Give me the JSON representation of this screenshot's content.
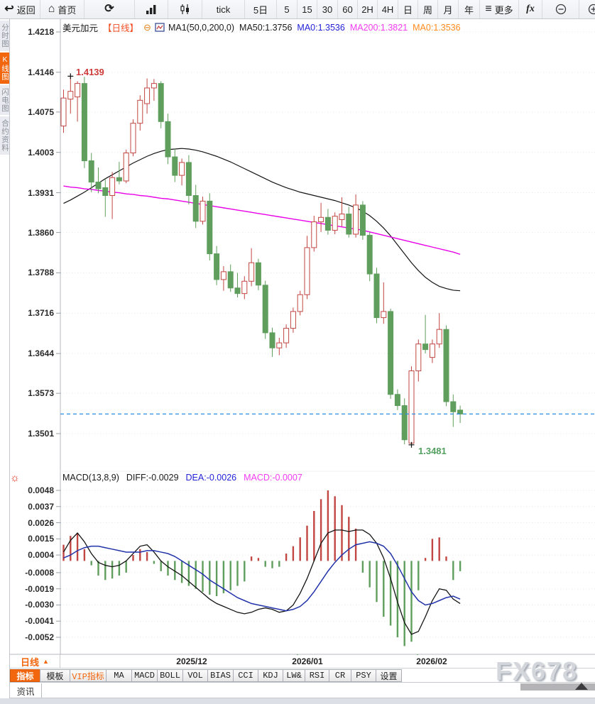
{
  "toolbar": {
    "items": [
      {
        "name": "back-button",
        "label": "返回",
        "icon": "back-arrow-icon"
      },
      {
        "name": "home-button",
        "label": "首页",
        "icon": "home-icon"
      },
      {
        "name": "refresh-button",
        "label": "",
        "icon": "refresh-icon"
      },
      {
        "name": "bar-chart-button",
        "label": "",
        "icon": "bar-chart-icon"
      },
      {
        "name": "candlestick-button",
        "label": "",
        "icon": "candlestick-icon"
      },
      {
        "name": "interval-tick-button",
        "label": "tick",
        "icon": ""
      },
      {
        "name": "interval-5d-button",
        "label": "5日",
        "icon": ""
      },
      {
        "name": "interval-5-button",
        "label": "5",
        "icon": ""
      },
      {
        "name": "interval-15-button",
        "label": "15",
        "icon": ""
      },
      {
        "name": "interval-30-button",
        "label": "30",
        "icon": ""
      },
      {
        "name": "interval-60-button",
        "label": "60",
        "icon": ""
      },
      {
        "name": "interval-2h-button",
        "label": "2H",
        "icon": ""
      },
      {
        "name": "interval-4h-button",
        "label": "4H",
        "icon": ""
      },
      {
        "name": "interval-day-button",
        "label": "日",
        "icon": ""
      },
      {
        "name": "interval-week-button",
        "label": "周",
        "icon": ""
      },
      {
        "name": "interval-month-button",
        "label": "月",
        "icon": ""
      },
      {
        "name": "interval-year-button",
        "label": "年",
        "icon": ""
      },
      {
        "name": "more-button",
        "label": "更多",
        "icon": "menu-icon"
      },
      {
        "name": "formula-button",
        "label": "fx",
        "icon": ""
      },
      {
        "name": "zoom-out-button",
        "label": "",
        "icon": "zoom-out-icon"
      },
      {
        "name": "zoom-in-button",
        "label": "",
        "icon": "zoom-in-icon"
      }
    ]
  },
  "sidebar": {
    "items": [
      {
        "name": "tab-time-chart",
        "label": "分时图",
        "selected": false
      },
      {
        "name": "tab-kline-chart",
        "label": "K线图",
        "selected": true
      },
      {
        "name": "tab-lightning-chart",
        "label": "闪电图",
        "selected": false
      },
      {
        "name": "tab-contract-info",
        "label": "合约资料",
        "selected": false
      }
    ]
  },
  "chart_header": {
    "symbol": "美元加元",
    "period": "【日线】",
    "ma_settings": "MA1(50,0,200,0)",
    "ma50": "MA50:1.3756",
    "ma0_blue": "MA0:1.3536",
    "ma200": "MA200:1.3821",
    "ma0_orange": "MA0:1.3536"
  },
  "main_chart": {
    "high_label": "1.4139",
    "low_label": "1.3481"
  },
  "macd_header": {
    "params": "MACD(13,8,9)",
    "diff": "DIFF:-0.0029",
    "dea": "DEA:-0.0026",
    "macd": "MACD:-0.0007"
  },
  "bottom": {
    "period_label": "日线",
    "dates": [
      "2025/12",
      "2026/01",
      "2026/02"
    ],
    "tabs": [
      {
        "name": "tab-indicator",
        "label": "指标",
        "selected": true,
        "vip": false
      },
      {
        "name": "tab-template",
        "label": "模板",
        "selected": false,
        "vip": false
      },
      {
        "name": "tab-vip-indicator",
        "label": "VIP指标",
        "selected": false,
        "vip": true
      },
      {
        "name": "tab-ma",
        "label": "MA",
        "selected": false,
        "vip": false
      },
      {
        "name": "tab-macd",
        "label": "MACD",
        "selected": false,
        "vip": false
      },
      {
        "name": "tab-boll",
        "label": "BOLL",
        "selected": false,
        "vip": false
      },
      {
        "name": "tab-vol",
        "label": "VOL",
        "selected": false,
        "vip": false
      },
      {
        "name": "tab-bias",
        "label": "BIAS",
        "selected": false,
        "vip": false
      },
      {
        "name": "tab-cci",
        "label": "CCI",
        "selected": false,
        "vip": false
      },
      {
        "name": "tab-kdj",
        "label": "KDJ",
        "selected": false,
        "vip": false
      },
      {
        "name": "tab-lwr",
        "label": "LW&",
        "selected": false,
        "vip": false
      },
      {
        "name": "tab-rsi",
        "label": "RSI",
        "selected": false,
        "vip": false
      },
      {
        "name": "tab-cr",
        "label": "CR",
        "selected": false,
        "vip": false
      },
      {
        "name": "tab-psy",
        "label": "PSY",
        "selected": false,
        "vip": false
      },
      {
        "name": "tab-settings",
        "label": "设置",
        "selected": false,
        "vip": false
      }
    ],
    "news_label": "资讯"
  },
  "watermark": "FX678",
  "colors": {
    "up": "#c24642",
    "down": "#5f9e5c",
    "ma50": "#141414",
    "ma200": "#e800e8",
    "diff_line": "#141414",
    "dea_line": "#2233aa",
    "price_line": "#2e8ce0",
    "accent_orange": "#f2660d",
    "header_period": "#f04e23",
    "text_blue": "#2323d8",
    "text_magenta": "#f23cf2",
    "text_orange": "#ff8a1e",
    "grid": "#e4e6ea"
  },
  "chart_data": [
    {
      "type": "candlestick",
      "title": "美元加元 日线 (USD/CAD Daily)",
      "y_ticks": [
        1.4218,
        1.4146,
        1.4075,
        1.4003,
        1.3931,
        1.386,
        1.3788,
        1.3716,
        1.3644,
        1.3573,
        1.3501
      ],
      "x_labels": [
        "2025/12",
        "2026/01",
        "2026/02"
      ],
      "high_annotation": 1.4139,
      "low_annotation": 1.3481,
      "last_price_line": 1.3536,
      "ma50_last": 1.3756,
      "ma200_last": 1.3821,
      "candles_ohlc": [
        [
          1.405,
          1.4115,
          1.4038,
          1.41
        ],
        [
          1.4098,
          1.4139,
          1.4072,
          1.4112
        ],
        [
          1.4102,
          1.413,
          1.4058,
          1.4126
        ],
        [
          1.4126,
          1.4138,
          1.3975,
          1.3988
        ],
        [
          1.3988,
          1.4002,
          1.3932,
          1.395
        ],
        [
          1.395,
          1.3976,
          1.393,
          1.3938
        ],
        [
          1.394,
          1.3956,
          1.3888,
          1.3926
        ],
        [
          1.3926,
          1.3968,
          1.3884,
          1.3958
        ],
        [
          1.3958,
          1.3986,
          1.3946,
          1.3952
        ],
        [
          1.3952,
          1.4008,
          1.3948,
          1.4002
        ],
        [
          1.4002,
          1.4062,
          1.3996,
          1.4055
        ],
        [
          1.4055,
          1.4105,
          1.4042,
          1.4096
        ],
        [
          1.409,
          1.4135,
          1.4072,
          1.4118
        ],
        [
          1.4118,
          1.4134,
          1.4095,
          1.4126
        ],
        [
          1.4126,
          1.413,
          1.4046,
          1.4058
        ],
        [
          1.4058,
          1.4072,
          1.3982,
          1.3995
        ],
        [
          1.3995,
          1.401,
          1.395,
          1.3962
        ],
        [
          1.3962,
          1.3992,
          1.3944,
          1.3985
        ],
        [
          1.3985,
          1.3998,
          1.391,
          1.3926
        ],
        [
          1.3926,
          1.3945,
          1.3868,
          1.388
        ],
        [
          1.388,
          1.3924,
          1.3874,
          1.3916
        ],
        [
          1.3916,
          1.393,
          1.381,
          1.3822
        ],
        [
          1.3822,
          1.3836,
          1.3766,
          1.3776
        ],
        [
          1.3776,
          1.38,
          1.3756,
          1.379
        ],
        [
          1.379,
          1.3803,
          1.3754,
          1.3761
        ],
        [
          1.3761,
          1.3788,
          1.3744,
          1.3751
        ],
        [
          1.3751,
          1.3782,
          1.3741,
          1.3773
        ],
        [
          1.3773,
          1.3832,
          1.3764,
          1.3806
        ],
        [
          1.3806,
          1.3813,
          1.3757,
          1.3766
        ],
        [
          1.3766,
          1.3774,
          1.367,
          1.3681
        ],
        [
          1.3681,
          1.369,
          1.3638,
          1.3654
        ],
        [
          1.3654,
          1.3672,
          1.3641,
          1.3663
        ],
        [
          1.3663,
          1.3696,
          1.3654,
          1.3689
        ],
        [
          1.3689,
          1.3726,
          1.3681,
          1.3719
        ],
        [
          1.3719,
          1.3756,
          1.3712,
          1.3749
        ],
        [
          1.3749,
          1.3854,
          1.3741,
          1.3833
        ],
        [
          1.3833,
          1.389,
          1.3826,
          1.3879
        ],
        [
          1.3879,
          1.3913,
          1.3861,
          1.3887
        ],
        [
          1.3887,
          1.3902,
          1.3856,
          1.3864
        ],
        [
          1.3864,
          1.3896,
          1.3857,
          1.3889
        ],
        [
          1.3883,
          1.3923,
          1.3871,
          1.3893
        ],
        [
          1.3893,
          1.3906,
          1.3851,
          1.3857
        ],
        [
          1.3857,
          1.3928,
          1.3851,
          1.3909
        ],
        [
          1.3909,
          1.3916,
          1.3847,
          1.3855
        ],
        [
          1.3855,
          1.3861,
          1.3773,
          1.3786
        ],
        [
          1.3786,
          1.3797,
          1.3698,
          1.3708
        ],
        [
          1.3708,
          1.3771,
          1.3697,
          1.3719
        ],
        [
          1.3719,
          1.3724,
          1.3563,
          1.3571
        ],
        [
          1.3571,
          1.358,
          1.3543,
          1.3551
        ],
        [
          1.3551,
          1.3564,
          1.3482,
          1.349
        ],
        [
          1.3484,
          1.3621,
          1.3481,
          1.3613
        ],
        [
          1.3613,
          1.3669,
          1.3594,
          1.3661
        ],
        [
          1.3661,
          1.3713,
          1.3644,
          1.3651
        ],
        [
          1.3637,
          1.3669,
          1.3627,
          1.3661
        ],
        [
          1.3661,
          1.3716,
          1.3654,
          1.3687
        ],
        [
          1.3687,
          1.3694,
          1.355,
          1.3558
        ],
        [
          1.3558,
          1.3571,
          1.3513,
          1.354
        ],
        [
          1.3543,
          1.3551,
          1.352,
          1.3536
        ]
      ],
      "ma50": [
        1.3912,
        1.3918,
        1.3925,
        1.3932,
        1.394,
        1.3948,
        1.3956,
        1.3963,
        1.397,
        1.3977,
        1.3984,
        1.399,
        1.3996,
        1.4001,
        1.4005,
        1.4008,
        1.4009,
        1.401,
        1.4009,
        1.4007,
        1.4004,
        1.4,
        1.3996,
        1.3991,
        1.3986,
        1.398,
        1.3974,
        1.3968,
        1.3962,
        1.3956,
        1.395,
        1.3945,
        1.394,
        1.3936,
        1.3932,
        1.3929,
        1.3926,
        1.3923,
        1.392,
        1.3917,
        1.3913,
        1.3909,
        1.3904,
        1.3898,
        1.389,
        1.388,
        1.3868,
        1.3854,
        1.3838,
        1.3822,
        1.3806,
        1.3792,
        1.378,
        1.3771,
        1.3764,
        1.376,
        1.3757,
        1.3756
      ],
      "ma200": [
        1.3943,
        1.3941,
        1.394,
        1.3938,
        1.3937,
        1.3935,
        1.3934,
        1.3932,
        1.3931,
        1.3929,
        1.3928,
        1.3926,
        1.3925,
        1.3923,
        1.3921,
        1.392,
        1.3918,
        1.3916,
        1.3914,
        1.3912,
        1.391,
        1.3908,
        1.3906,
        1.3904,
        1.3902,
        1.39,
        1.3898,
        1.3896,
        1.3894,
        1.3892,
        1.389,
        1.3888,
        1.3886,
        1.3884,
        1.3882,
        1.388,
        1.3878,
        1.3876,
        1.3874,
        1.3872,
        1.387,
        1.3868,
        1.3866,
        1.3864,
        1.3861,
        1.3858,
        1.3855,
        1.3852,
        1.3849,
        1.3846,
        1.3843,
        1.384,
        1.3837,
        1.3834,
        1.3831,
        1.3828,
        1.3825,
        1.3821
      ]
    },
    {
      "type": "macd",
      "params": "MACD(13,8,9)",
      "y_ticks": [
        0.0048,
        0.0037,
        0.0026,
        0.0015,
        0.0004,
        -0.0008,
        -0.0019,
        -0.003,
        -0.0041,
        -0.0052
      ],
      "diff_last": -0.0029,
      "dea_last": -0.0026,
      "macd_last": -0.0007,
      "histogram": [
        0.0011,
        0.0017,
        0.0019,
        0.0008,
        -0.0003,
        -0.001,
        -0.0013,
        -0.0012,
        -0.001,
        -0.0008,
        0.0004,
        0.0008,
        0.0006,
        -0.0002,
        -0.0007,
        -0.001,
        -0.0013,
        -0.0015,
        -0.0017,
        -0.0019,
        -0.0021,
        -0.0023,
        -0.0024,
        -0.0022,
        -0.002,
        -0.0017,
        -0.0014,
        0.0003,
        0.0002,
        -0.0004,
        -0.0005,
        -0.0004,
        0.0005,
        0.001,
        0.0016,
        0.0024,
        0.0034,
        0.0042,
        0.0048,
        0.0044,
        0.0038,
        0.003,
        0.0022,
        -0.0008,
        -0.0018,
        -0.0028,
        -0.0038,
        -0.0044,
        -0.0052,
        -0.0058,
        -0.0055,
        -0.002,
        0.0002,
        0.0015,
        0.0016,
        0.0003,
        -0.0013,
        -0.0007
      ],
      "diff": [
        0.0006,
        0.0014,
        0.0019,
        0.0013,
        0.0005,
        -0.0001,
        -0.0003,
        -0.0004,
        -0.0003,
        0.0,
        0.0005,
        0.001,
        0.0011,
        0.0006,
        0.0,
        -0.0004,
        -0.0007,
        -0.001,
        -0.0014,
        -0.0018,
        -0.0022,
        -0.0026,
        -0.0029,
        -0.0031,
        -0.0033,
        -0.0035,
        -0.0036,
        -0.0035,
        -0.0033,
        -0.0032,
        -0.0033,
        -0.0035,
        -0.0034,
        -0.003,
        -0.0022,
        -0.0012,
        0.0,
        0.0012,
        0.0019,
        0.0021,
        0.0021,
        0.002,
        0.0021,
        0.0021,
        0.0018,
        0.0012,
        0.0002,
        -0.0012,
        -0.0028,
        -0.0042,
        -0.005,
        -0.0048,
        -0.0038,
        -0.0027,
        -0.0019,
        -0.002,
        -0.0026,
        -0.0029
      ],
      "dea": [
        0.0002,
        0.0004,
        0.0007,
        0.0009,
        0.001,
        0.001,
        0.0009,
        0.0008,
        0.0007,
        0.0006,
        0.0006,
        0.0006,
        0.0007,
        0.0007,
        0.0006,
        0.0005,
        0.0003,
        0.0,
        -0.0003,
        -0.0006,
        -0.0009,
        -0.0013,
        -0.0016,
        -0.0019,
        -0.0022,
        -0.0025,
        -0.0027,
        -0.0029,
        -0.003,
        -0.0031,
        -0.0032,
        -0.0033,
        -0.0034,
        -0.0033,
        -0.0031,
        -0.0027,
        -0.0021,
        -0.0014,
        -0.0007,
        -0.0001,
        0.0004,
        0.0008,
        0.0011,
        0.0012,
        0.0013,
        0.0012,
        0.001,
        0.0005,
        -0.0003,
        -0.0012,
        -0.0021,
        -0.0027,
        -0.003,
        -0.0029,
        -0.0027,
        -0.0025,
        -0.0024,
        -0.0026
      ]
    }
  ]
}
